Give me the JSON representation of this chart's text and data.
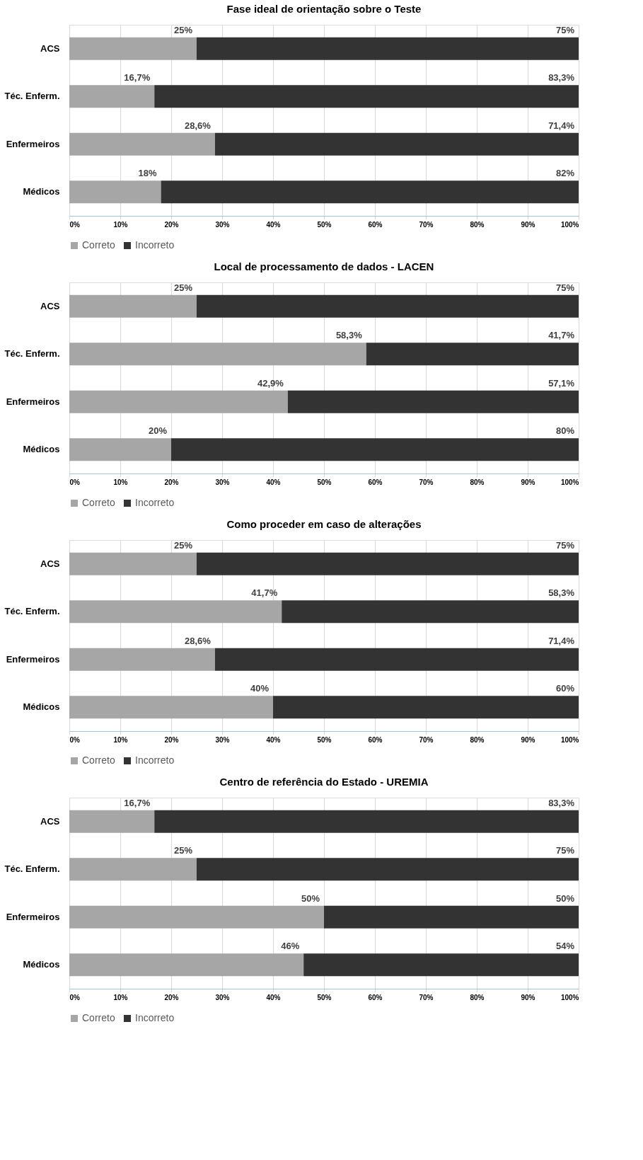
{
  "chart_data": [
    {
      "type": "bar",
      "title": "Fase ideal de orientação sobre o Teste",
      "orientation": "horizontal",
      "stacked": true,
      "categories": [
        "ACS",
        "Téc. Enferm.",
        "Enfermeiros",
        "Médicos"
      ],
      "series": [
        {
          "name": "Correto",
          "color": "#a6a6a6",
          "values": [
            25,
            16.7,
            28.6,
            18
          ],
          "value_labels": [
            "25%",
            "16,7%",
            "28,6%",
            "18%"
          ]
        },
        {
          "name": "Incorreto",
          "color": "#333333",
          "values": [
            75,
            83.3,
            71.4,
            82
          ],
          "value_labels": [
            "75%",
            "83,3%",
            "71,4%",
            "82%"
          ]
        }
      ],
      "xlim": [
        0,
        100
      ],
      "xticks": [
        {
          "value": 0,
          "label": "0%"
        },
        {
          "value": 10,
          "label": "10%"
        },
        {
          "value": 20,
          "label": "20%"
        },
        {
          "value": 30,
          "label": "30%"
        },
        {
          "value": 40,
          "label": "40%"
        },
        {
          "value": 50,
          "label": "50%"
        },
        {
          "value": 60,
          "label": "60%"
        },
        {
          "value": 70,
          "label": "70%"
        },
        {
          "value": 80,
          "label": "80%"
        },
        {
          "value": 90,
          "label": "90%"
        },
        {
          "value": 100,
          "label": "100%"
        }
      ],
      "grid": "x",
      "legend": "bottom"
    },
    {
      "type": "bar",
      "title": "Local de processamento de dados - LACEN",
      "orientation": "horizontal",
      "stacked": true,
      "categories": [
        "ACS",
        "Téc. Enferm.",
        "Enfermeiros",
        "Médicos"
      ],
      "series": [
        {
          "name": "Correto",
          "color": "#a6a6a6",
          "values": [
            25,
            58.3,
            42.9,
            20
          ],
          "value_labels": [
            "25%",
            "58,3%",
            "42,9%",
            "20%"
          ]
        },
        {
          "name": "Incorreto",
          "color": "#333333",
          "values": [
            75,
            41.7,
            57.1,
            80
          ],
          "value_labels": [
            "75%",
            "41,7%",
            "57,1%",
            "80%"
          ]
        }
      ],
      "xlim": [
        0,
        100
      ],
      "xticks": [
        {
          "value": 0,
          "label": "0%"
        },
        {
          "value": 10,
          "label": "10%"
        },
        {
          "value": 20,
          "label": "20%"
        },
        {
          "value": 30,
          "label": "30%"
        },
        {
          "value": 40,
          "label": "40%"
        },
        {
          "value": 50,
          "label": "50%"
        },
        {
          "value": 60,
          "label": "60%"
        },
        {
          "value": 70,
          "label": "70%"
        },
        {
          "value": 80,
          "label": "80%"
        },
        {
          "value": 90,
          "label": "90%"
        },
        {
          "value": 100,
          "label": "100%"
        }
      ],
      "grid": "x",
      "legend": "bottom"
    },
    {
      "type": "bar",
      "title": "Como proceder em caso de alterações",
      "orientation": "horizontal",
      "stacked": true,
      "categories": [
        "ACS",
        "Téc. Enferm.",
        "Enfermeiros",
        "Médicos"
      ],
      "series": [
        {
          "name": "Correto",
          "color": "#a6a6a6",
          "values": [
            25,
            41.7,
            28.6,
            40
          ],
          "value_labels": [
            "25%",
            "41,7%",
            "28,6%",
            "40%"
          ]
        },
        {
          "name": "Incorreto",
          "color": "#333333",
          "values": [
            75,
            58.3,
            71.4,
            60
          ],
          "value_labels": [
            "75%",
            "58,3%",
            "71,4%",
            "60%"
          ]
        }
      ],
      "xlim": [
        0,
        100
      ],
      "xticks": [
        {
          "value": 0,
          "label": "0%"
        },
        {
          "value": 10,
          "label": "10%"
        },
        {
          "value": 20,
          "label": "20%"
        },
        {
          "value": 30,
          "label": "30%"
        },
        {
          "value": 40,
          "label": "40%"
        },
        {
          "value": 50,
          "label": "50%"
        },
        {
          "value": 60,
          "label": "60%"
        },
        {
          "value": 70,
          "label": "70%"
        },
        {
          "value": 80,
          "label": "80%"
        },
        {
          "value": 90,
          "label": "90%"
        },
        {
          "value": 100,
          "label": "100%"
        }
      ],
      "grid": "x",
      "legend": "bottom"
    },
    {
      "type": "bar",
      "title": "Centro de referência do Estado - UREMIA",
      "orientation": "horizontal",
      "stacked": true,
      "categories": [
        "ACS",
        "Téc. Enferm.",
        "Enfermeiros",
        "Médicos"
      ],
      "series": [
        {
          "name": "Correto",
          "color": "#a6a6a6",
          "values": [
            16.7,
            25,
            50,
            46
          ],
          "value_labels": [
            "16,7%",
            "25%",
            "50%",
            "46%"
          ]
        },
        {
          "name": "Incorreto",
          "color": "#333333",
          "values": [
            83.3,
            75,
            50,
            54
          ],
          "value_labels": [
            "83,3%",
            "75%",
            "50%",
            "54%"
          ]
        }
      ],
      "xlim": [
        0,
        100
      ],
      "xticks": [
        {
          "value": 0,
          "label": "0%"
        },
        {
          "value": 10,
          "label": "10%"
        },
        {
          "value": 20,
          "label": "20%"
        },
        {
          "value": 30,
          "label": "30%"
        },
        {
          "value": 40,
          "label": "40%"
        },
        {
          "value": 50,
          "label": "50%"
        },
        {
          "value": 60,
          "label": "60%"
        },
        {
          "value": 70,
          "label": "70%"
        },
        {
          "value": 80,
          "label": "80%"
        },
        {
          "value": 90,
          "label": "90%"
        },
        {
          "value": 100,
          "label": "100%"
        }
      ],
      "grid": "x",
      "legend": "bottom"
    }
  ]
}
